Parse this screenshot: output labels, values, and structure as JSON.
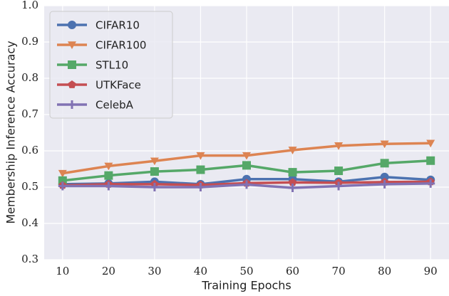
{
  "chart_data": {
    "type": "line",
    "xlabel": "Training Epochs",
    "ylabel": "Membership Inference Accuracy",
    "x": [
      10,
      20,
      30,
      40,
      50,
      60,
      70,
      80,
      90
    ],
    "series": [
      {
        "name": "CIFAR10",
        "color": "#4c72b0",
        "marker": "circle",
        "values": [
          0.508,
          0.51,
          0.515,
          0.508,
          0.522,
          0.522,
          0.515,
          0.528,
          0.52
        ]
      },
      {
        "name": "CIFAR100",
        "color": "#dd8452",
        "marker": "triangle-down",
        "values": [
          0.538,
          0.558,
          0.572,
          0.587,
          0.587,
          0.602,
          0.614,
          0.619,
          0.621
        ]
      },
      {
        "name": "STL10",
        "color": "#55a868",
        "marker": "square",
        "values": [
          0.518,
          0.532,
          0.543,
          0.548,
          0.56,
          0.541,
          0.545,
          0.566,
          0.573
        ]
      },
      {
        "name": "UTKFace",
        "color": "#c44e52",
        "marker": "pentagon",
        "values": [
          0.505,
          0.508,
          0.508,
          0.506,
          0.511,
          0.513,
          0.512,
          0.514,
          0.515
        ]
      },
      {
        "name": "CelebA",
        "color": "#8172b3",
        "marker": "plus",
        "values": [
          0.503,
          0.503,
          0.5,
          0.5,
          0.507,
          0.498,
          0.503,
          0.508,
          0.51
        ]
      }
    ],
    "xlim": [
      6,
      94
    ],
    "xticks": [
      10,
      20,
      30,
      40,
      50,
      60,
      70,
      80,
      90
    ],
    "ylim": [
      0.3,
      1
    ],
    "yticks": [
      0.3,
      0.4,
      0.5,
      0.6,
      0.7,
      0.8,
      0.9,
      {
        "value": 1,
        "label": "1.0"
      }
    ],
    "grid": true,
    "legend": "upper left"
  }
}
